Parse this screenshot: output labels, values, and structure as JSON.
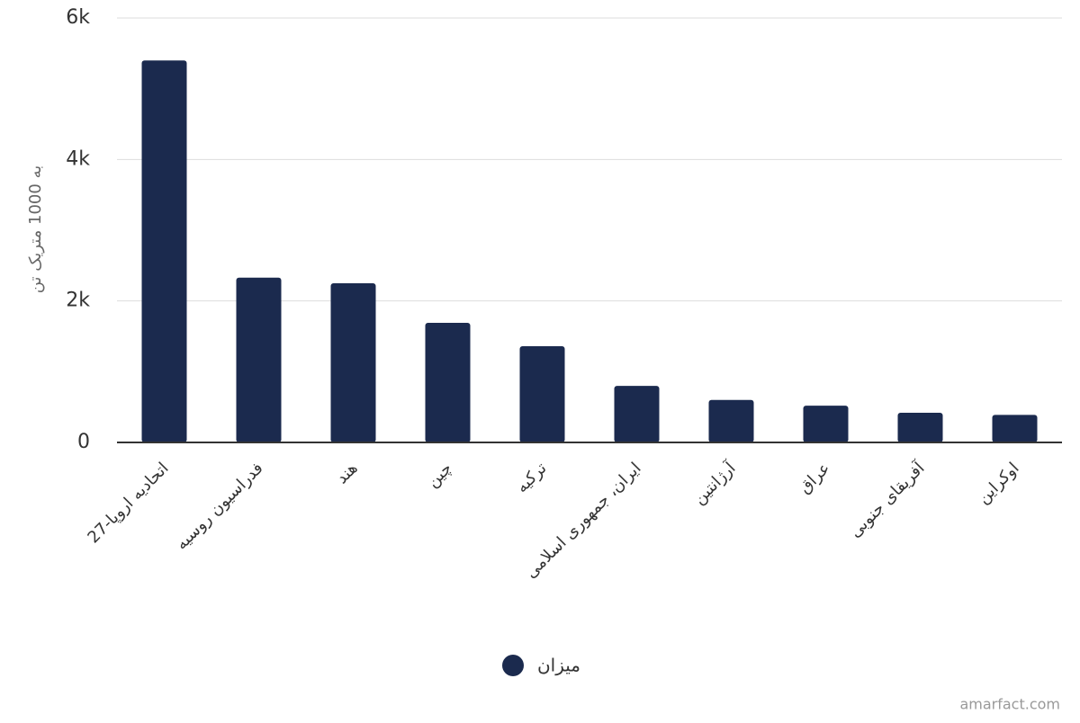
{
  "chart_data": {
    "type": "bar",
    "y_label": "به 1000 متریک تن",
    "categories": [
      "اتحادیه اروپا-27",
      "فدراسیون روسیه",
      "هند",
      "چین",
      "ترکیه",
      "ایران، جمهوری اسلامی",
      "آرژانتین",
      "عراق",
      "آفریقای جنوبی",
      "اوکراین"
    ],
    "series": [
      {
        "name": "میزان",
        "color": "#1b2a4e",
        "values": [
          5400,
          2330,
          2250,
          1690,
          1360,
          800,
          600,
          520,
          420,
          390
        ]
      }
    ],
    "ylim": [
      0,
      6000
    ],
    "yticks": [
      0,
      {
        "value": 2000,
        "label": "2k"
      },
      {
        "value": 4000,
        "label": "4k"
      },
      {
        "value": 6000,
        "label": "6k"
      }
    ],
    "grid": true,
    "watermark": "amarfact.com"
  }
}
